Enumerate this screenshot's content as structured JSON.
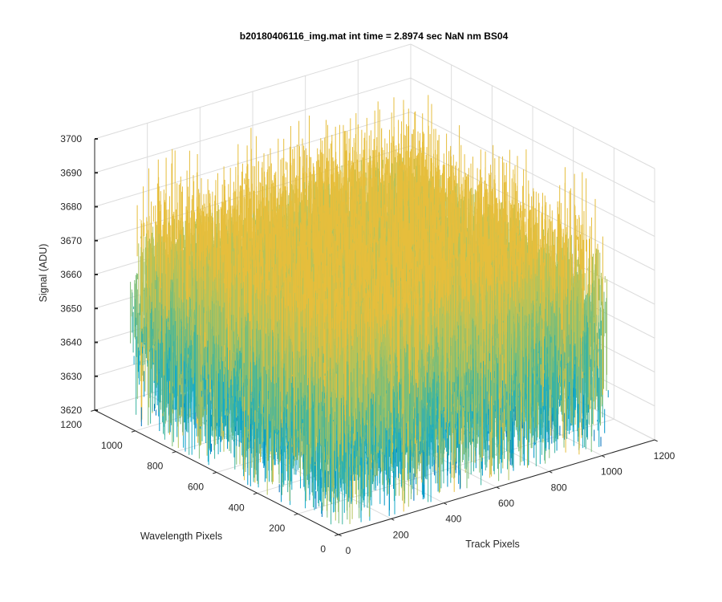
{
  "chart_data": {
    "type": "surface",
    "title": "b20180406116_img.mat int time = 2.8974 sec  NaN nm BS04",
    "xlabel": "Track Pixels",
    "ylabel": "Wavelength Pixels",
    "zlabel": "Signal (ADU)",
    "xlim": [
      0,
      1200
    ],
    "ylim": [
      0,
      1200
    ],
    "zlim": [
      3620,
      3700
    ],
    "x_ticks": [
      "0",
      "200",
      "400",
      "600",
      "800",
      "1000",
      "1200"
    ],
    "y_ticks": [
      "0",
      "200",
      "400",
      "600",
      "800",
      "1000",
      "1200"
    ],
    "z_ticks": [
      "3620",
      "3630",
      "3640",
      "3650",
      "3660",
      "3670",
      "3680",
      "3690",
      "3700"
    ],
    "data_extent": {
      "track_pixels": [
        0,
        1024
      ],
      "wavelength_pixels": [
        0,
        1024
      ]
    },
    "signal_mean": 3655,
    "signal_noise_range": [
      3625,
      3695
    ],
    "grid": true,
    "colormap": [
      "#0072bd",
      "#0096c8",
      "#14aac8",
      "#3cb4a0",
      "#7dbe78",
      "#b4c35a",
      "#e6be3c"
    ]
  }
}
